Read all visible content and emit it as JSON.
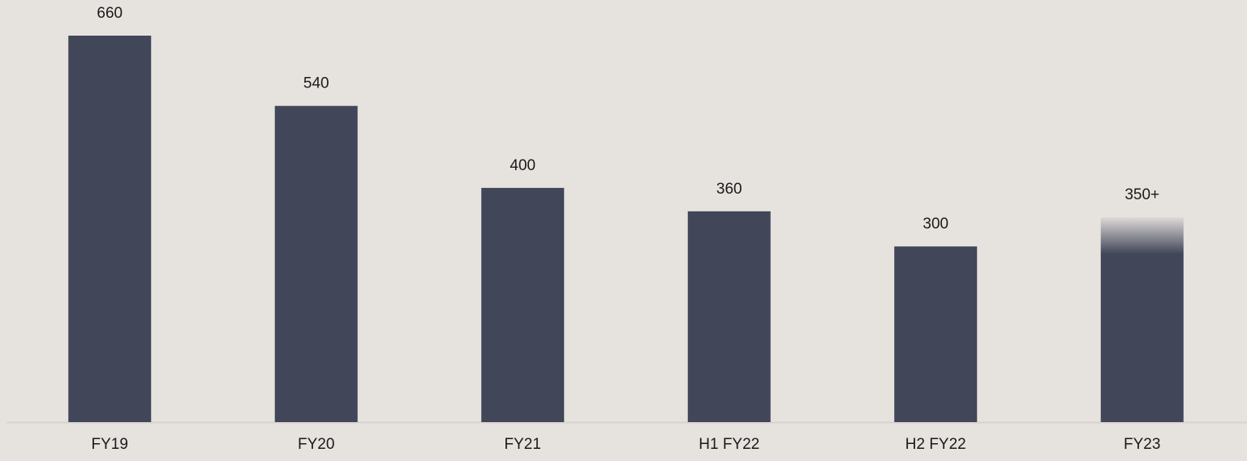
{
  "chart_data": {
    "type": "bar",
    "categories": [
      "FY19",
      "FY20",
      "FY21",
      "H1 FY22",
      "H2 FY22",
      "FY23"
    ],
    "values": [
      660,
      540,
      400,
      360,
      300,
      350
    ],
    "value_labels": [
      "660",
      "540",
      "400",
      "360",
      "300",
      "350+"
    ],
    "color": "#414659"
  }
}
